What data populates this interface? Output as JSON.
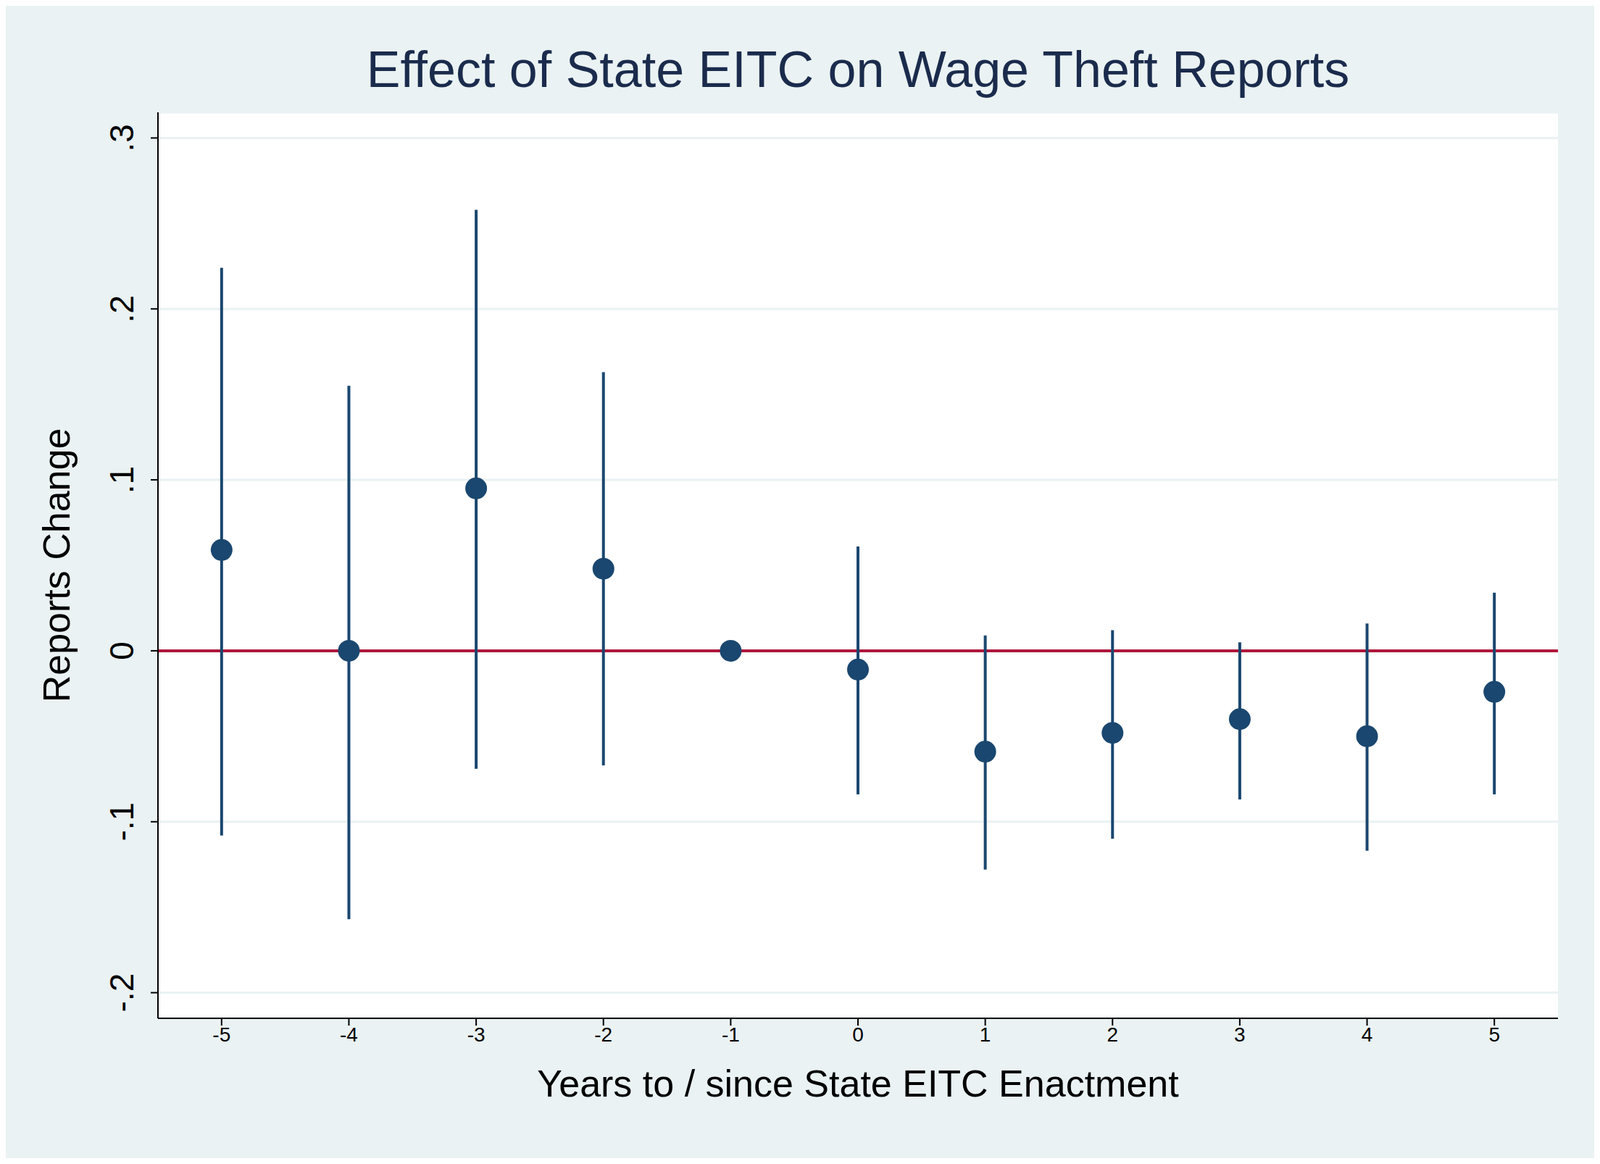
{
  "chart_data": {
    "type": "scatter",
    "title": "Effect of State EITC on Wage Theft Reports",
    "x_label": "Years to / since State EITC Enactment",
    "y_label": "Reports Change",
    "x": [
      -5,
      -4,
      -3,
      -2,
      -1,
      0,
      1,
      2,
      3,
      4,
      5
    ],
    "values": [
      0.059,
      0.0,
      0.095,
      0.048,
      0.0,
      -0.011,
      -0.059,
      -0.048,
      -0.04,
      -0.05,
      -0.024
    ],
    "ci_low": [
      -0.108,
      -0.157,
      -0.069,
      -0.067,
      0.0,
      -0.084,
      -0.128,
      -0.11,
      -0.087,
      -0.117,
      -0.084
    ],
    "ci_high": [
      0.224,
      0.155,
      0.258,
      0.163,
      0.0,
      0.061,
      0.009,
      0.012,
      0.005,
      0.016,
      0.034
    ],
    "color": "#1a476f",
    "marker": "circle",
    "xlim": [
      -5.5,
      5.5
    ],
    "xticks": [
      -5,
      -4,
      -3,
      -2,
      -1,
      0,
      1,
      2,
      3,
      4,
      5
    ],
    "ylim": [
      -0.215,
      0.315
    ],
    "yticks": [
      {
        "value": -0.2,
        "label": "-.2"
      },
      {
        "value": -0.1,
        "label": "-.1"
      },
      {
        "value": 0,
        "label": "0"
      },
      {
        "value": 0.1,
        "label": ".1"
      },
      {
        "value": 0.2,
        "label": ".2"
      },
      {
        "value": 0.3,
        "label": ".3"
      }
    ],
    "grid": true,
    "reference_line": {
      "y": 0,
      "color": "#b0173a"
    }
  }
}
